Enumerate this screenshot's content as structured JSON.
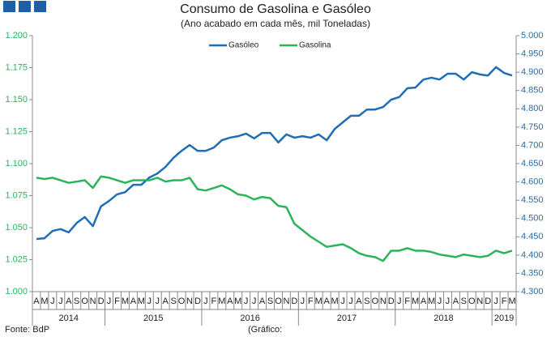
{
  "chart_data": {
    "type": "line",
    "title": "Consumo de Gasolina e Gasóleo",
    "subtitle": "(Ano acabado em cada mês,  mil Toneladas)",
    "source": "Fonte: BdP",
    "note": "(Gráfico:",
    "categories": [
      "A",
      "M",
      "J",
      "J",
      "A",
      "S",
      "O",
      "N",
      "D",
      "J",
      "F",
      "M",
      "A",
      "M",
      "J",
      "J",
      "A",
      "S",
      "O",
      "N",
      "D",
      "J",
      "F",
      "M",
      "A",
      "M",
      "J",
      "J",
      "A",
      "S",
      "O",
      "N",
      "D",
      "J",
      "F",
      "M",
      "A",
      "M",
      "J",
      "J",
      "A",
      "S",
      "O",
      "N",
      "D",
      "J",
      "F",
      "M",
      "A",
      "M",
      "J",
      "J",
      "A",
      "S",
      "O",
      "N",
      "D",
      "J",
      "F",
      "M"
    ],
    "years": [
      "2014",
      "2015",
      "2016",
      "2017",
      "2018",
      "2019"
    ],
    "series": [
      {
        "name": "Gasóleo",
        "color": "#1f6db5",
        "axis": "y2",
        "values": [
          4444,
          4446,
          4466,
          4471,
          4462,
          4488,
          4504,
          4479,
          4533,
          4548,
          4566,
          4572,
          4592,
          4592,
          4612,
          4623,
          4641,
          4666,
          4685,
          4701,
          4685,
          4685,
          4694,
          4714,
          4721,
          4725,
          4732,
          4719,
          4734,
          4734,
          4708,
          4730,
          4721,
          4725,
          4721,
          4730,
          4714,
          4745,
          4763,
          4781,
          4781,
          4798,
          4798,
          4805,
          4825,
          4832,
          4856,
          4858,
          4880,
          4885,
          4880,
          4896,
          4896,
          4880,
          4900,
          4894,
          4891,
          4914,
          4898,
          4891
        ]
      },
      {
        "name": "Gasolina",
        "color": "#2bb35a",
        "values": [
          1089,
          1088,
          1089,
          1087,
          1085,
          1086,
          1087,
          1081,
          1090,
          1089,
          1087,
          1085,
          1087,
          1087,
          1087,
          1089,
          1086,
          1087,
          1087,
          1089,
          1080,
          1079,
          1081,
          1083,
          1080,
          1076,
          1075,
          1072,
          1074,
          1073,
          1067,
          1066,
          1053,
          1048,
          1043,
          1039,
          1035,
          1036,
          1037,
          1034,
          1030,
          1028,
          1027,
          1024,
          1032,
          1032,
          1034,
          1032,
          1032,
          1031,
          1029,
          1028,
          1027,
          1029,
          1028,
          1027,
          1028,
          1032,
          1030,
          1032
        ]
      }
    ],
    "ylim": [
      1000,
      1200
    ],
    "yticks": [
      {
        "value": 1000,
        "label": "1.000"
      },
      {
        "value": 1025,
        "label": "1.025"
      },
      {
        "value": 1050,
        "label": "1.050"
      },
      {
        "value": 1075,
        "label": "1.075"
      },
      {
        "value": 1100,
        "label": "1.100"
      },
      {
        "value": 1125,
        "label": "1.125"
      },
      {
        "value": 1150,
        "label": "1.150"
      },
      {
        "value": 1175,
        "label": "1.175"
      },
      {
        "value": 1200,
        "label": "1.200"
      }
    ],
    "y2lim": [
      4300,
      5000
    ],
    "y2ticks": [
      {
        "value": 4300,
        "label": "4.300"
      },
      {
        "value": 4350,
        "label": "4.350"
      },
      {
        "value": 4400,
        "label": "4.400"
      },
      {
        "value": 4450,
        "label": "4.450"
      },
      {
        "value": 4500,
        "label": "4.500"
      },
      {
        "value": 4550,
        "label": "4.550"
      },
      {
        "value": 4600,
        "label": "4.600"
      },
      {
        "value": 4650,
        "label": "4.650"
      },
      {
        "value": 4700,
        "label": "4.700"
      },
      {
        "value": 4750,
        "label": "4.750"
      },
      {
        "value": 4800,
        "label": "4.800"
      },
      {
        "value": 4850,
        "label": "4.850"
      },
      {
        "value": 4900,
        "label": "4.900"
      },
      {
        "value": 4950,
        "label": "4.950"
      },
      {
        "value": 5000,
        "label": "5.000"
      }
    ],
    "grid": false,
    "legend": "top"
  }
}
